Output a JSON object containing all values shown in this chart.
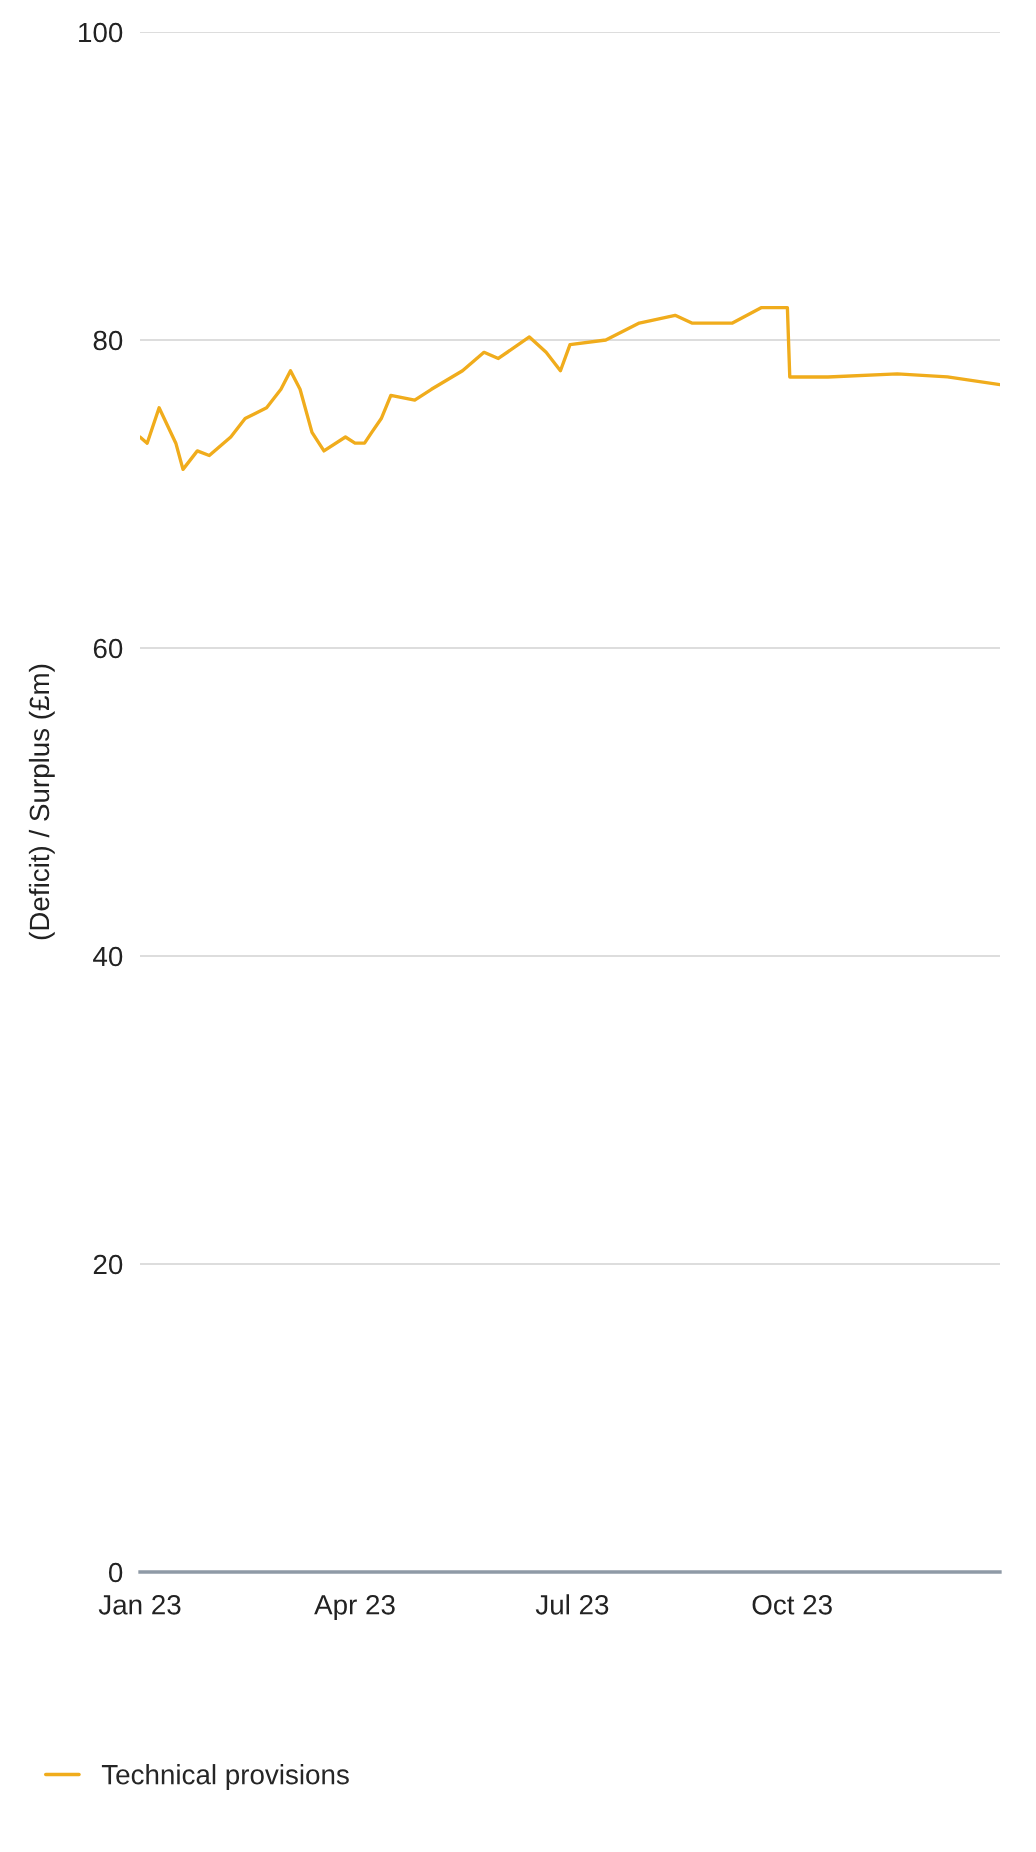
{
  "chart_data": {
    "type": "line",
    "ylabel": "(Deficit) / Surplus (£m)",
    "legend": "bottom left",
    "grid": "y",
    "x": [
      "2023-01-01",
      "2023-01-04",
      "2023-01-09",
      "2023-01-16",
      "2023-01-19",
      "2023-01-25",
      "2023-01-30",
      "2023-02-08",
      "2023-02-14",
      "2023-02-23",
      "2023-03-01",
      "2023-03-05",
      "2023-03-09",
      "2023-03-14",
      "2023-03-19",
      "2023-03-28",
      "2023-04-01",
      "2023-04-05",
      "2023-04-08",
      "2023-04-12",
      "2023-04-16",
      "2023-04-26",
      "2023-05-03",
      "2023-05-16",
      "2023-05-25",
      "2023-05-31",
      "2023-06-13",
      "2023-06-20",
      "2023-06-26",
      "2023-06-30",
      "2023-07-15",
      "2023-07-29",
      "2023-08-13",
      "2023-08-20",
      "2023-09-06",
      "2023-09-18",
      "2023-09-29",
      "2023-09-30",
      "2023-10-16",
      "2023-11-14",
      "2023-12-05",
      "2023-12-27"
    ],
    "series": [
      {
        "name": "Technical provisions",
        "color": "#f0ac1c",
        "values": [
          73.7,
          73.3,
          75.6,
          73.3,
          71.6,
          72.8,
          72.5,
          73.7,
          74.9,
          75.6,
          76.8,
          78.0,
          76.8,
          74.0,
          72.8,
          73.7,
          73.3,
          73.3,
          74.0,
          74.9,
          76.4,
          76.1,
          76.8,
          78.0,
          79.2,
          78.8,
          80.2,
          79.2,
          78.0,
          79.7,
          80.0,
          81.1,
          81.6,
          81.1,
          81.1,
          82.1,
          82.1,
          77.6,
          77.6,
          77.8,
          77.6,
          77.1
        ]
      }
    ],
    "xlim": [
      "2023-01-01",
      "2023-12-27"
    ],
    "xticks": [
      {
        "value": "2023-01-01",
        "label": "Jan 23"
      },
      {
        "value": "2023-04-01",
        "label": "Apr 23"
      },
      {
        "value": "2023-07-01",
        "label": "Jul 23"
      },
      {
        "value": "2023-10-01",
        "label": "Oct 23"
      }
    ],
    "ylim": [
      0,
      100
    ],
    "yticks": [
      0,
      20,
      40,
      60,
      80,
      100
    ]
  }
}
